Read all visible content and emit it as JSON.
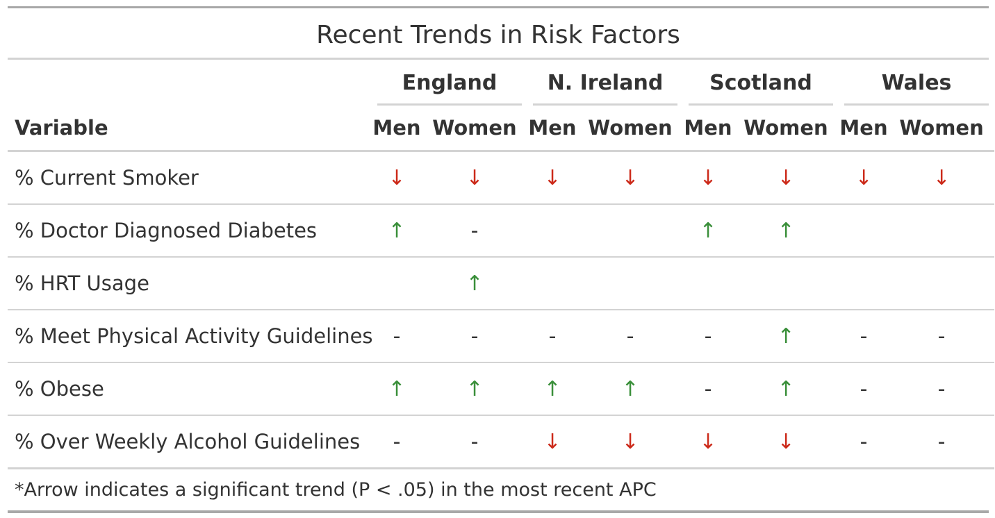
{
  "title": "Recent Trends in Risk Factors",
  "colors": {
    "down": "#cc2a1a",
    "up": "#3a8f3a",
    "neutral": "#333333"
  },
  "header": {
    "variable_label": "Variable",
    "regions": [
      {
        "name": "England",
        "men_label": "Men",
        "women_label": "Women"
      },
      {
        "name": "N. Ireland",
        "men_label": "Men",
        "women_label": "Women"
      },
      {
        "name": "Scotland",
        "men_label": "Men",
        "women_label": "Women"
      },
      {
        "name": "Wales",
        "men_label": "Men",
        "women_label": "Women"
      }
    ]
  },
  "rows": [
    {
      "variable": "% Current Smoker",
      "values": [
        "↓",
        "↓",
        "↓",
        "↓",
        "↓",
        "↓",
        "↓",
        "↓"
      ]
    },
    {
      "variable": "% Doctor Diagnosed Diabetes",
      "values": [
        "↑",
        "-",
        "",
        "",
        "↑",
        "↑",
        "",
        ""
      ]
    },
    {
      "variable": "% HRT Usage",
      "values": [
        "",
        "↑",
        "",
        "",
        "",
        "",
        "",
        ""
      ]
    },
    {
      "variable": "% Meet Physical Activity Guidelines",
      "values": [
        "-",
        "-",
        "-",
        "-",
        "-",
        "↑",
        "-",
        "-"
      ]
    },
    {
      "variable": "% Obese",
      "values": [
        "↑",
        "↑",
        "↑",
        "↑",
        "-",
        "↑",
        "-",
        "-"
      ]
    },
    {
      "variable": "% Over Weekly Alcohol Guidelines",
      "values": [
        "-",
        "-",
        "↓",
        "↓",
        "↓",
        "↓",
        "-",
        "-"
      ]
    }
  ],
  "footnote": "*Arrow indicates a significant trend (P < .05) in the most recent APC"
}
